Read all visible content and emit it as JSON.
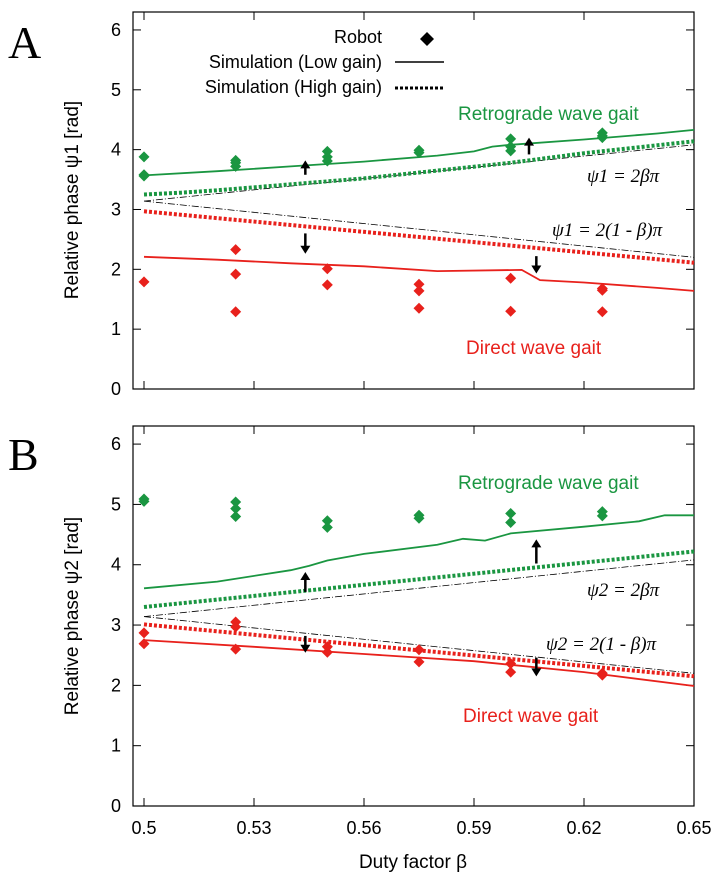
{
  "figure": {
    "xlabel": "Duty factor β",
    "xlim": [
      0.497,
      0.65
    ],
    "xticks": [
      0.5,
      0.53,
      0.56,
      0.59,
      0.62,
      0.65
    ],
    "xtick_labels": [
      "0.5",
      "0.53",
      "0.56",
      "0.59",
      "0.62",
      "0.65"
    ],
    "legend": {
      "robot_label": "Robot",
      "low_label": "Simulation (Low gain)",
      "high_label": "Simulation (High gain)",
      "placement": "top-left"
    },
    "colors": {
      "green": "#1a9641",
      "red": "#e8211c",
      "guide": "#000000",
      "arrow": "#000000"
    }
  },
  "chart_data": [
    {
      "type": "scatter",
      "panel": "A",
      "ylabel": "Relative phase ψ1 [rad]",
      "ylim": [
        0,
        6.3
      ],
      "yticks": [
        0,
        1,
        2,
        3,
        4,
        5,
        6
      ],
      "ytick_labels": [
        "0",
        "1",
        "2",
        "3",
        "4",
        "5",
        "6"
      ],
      "grid": false,
      "retro_label": "Retrograde wave gait",
      "direct_label": "Direct wave gait",
      "retro_formula": "ψ1 = 2βπ",
      "direct_formula": "ψ1 = 2(1 - β)π",
      "series": [
        {
          "name": "Robot",
          "group": "retrograde",
          "points": [
            [
              0.5,
              3.88
            ],
            [
              0.5,
              3.58
            ],
            [
              0.5,
              3.56
            ],
            [
              0.525,
              3.82
            ],
            [
              0.525,
              3.78
            ],
            [
              0.525,
              3.72
            ],
            [
              0.55,
              3.97
            ],
            [
              0.55,
              3.88
            ],
            [
              0.55,
              3.81
            ],
            [
              0.575,
              3.99
            ],
            [
              0.575,
              3.95
            ],
            [
              0.6,
              4.18
            ],
            [
              0.6,
              4.05
            ],
            [
              0.6,
              3.98
            ],
            [
              0.625,
              4.28
            ],
            [
              0.625,
              4.23
            ],
            [
              0.625,
              4.2
            ]
          ]
        },
        {
          "name": "Robot",
          "group": "direct",
          "points": [
            [
              0.5,
              1.79
            ],
            [
              0.525,
              2.33
            ],
            [
              0.525,
              1.92
            ],
            [
              0.525,
              1.29
            ],
            [
              0.55,
              2.01
            ],
            [
              0.55,
              1.74
            ],
            [
              0.575,
              1.75
            ],
            [
              0.575,
              1.64
            ],
            [
              0.575,
              1.35
            ],
            [
              0.6,
              1.85
            ],
            [
              0.6,
              1.3
            ],
            [
              0.625,
              1.68
            ],
            [
              0.625,
              1.65
            ],
            [
              0.625,
              1.29
            ]
          ]
        },
        {
          "name": "Simulation (Low gain)",
          "group": "retrograde",
          "points": [
            [
              0.5,
              3.57
            ],
            [
              0.52,
              3.64
            ],
            [
              0.54,
              3.72
            ],
            [
              0.56,
              3.8
            ],
            [
              0.58,
              3.9
            ],
            [
              0.59,
              3.97
            ],
            [
              0.595,
              4.05
            ],
            [
              0.6,
              4.08
            ],
            [
              0.62,
              4.17
            ],
            [
              0.64,
              4.27
            ],
            [
              0.65,
              4.33
            ]
          ]
        },
        {
          "name": "Simulation (Low gain)",
          "group": "direct",
          "points": [
            [
              0.5,
              2.21
            ],
            [
              0.52,
              2.16
            ],
            [
              0.54,
              2.1
            ],
            [
              0.56,
              2.05
            ],
            [
              0.58,
              1.97
            ],
            [
              0.603,
              1.99
            ],
            [
              0.608,
              1.82
            ],
            [
              0.62,
              1.78
            ],
            [
              0.64,
              1.69
            ],
            [
              0.65,
              1.64
            ]
          ]
        },
        {
          "name": "Simulation (High gain)",
          "group": "retrograde",
          "points": [
            [
              0.5,
              3.25
            ],
            [
              0.51,
              3.28
            ],
            [
              0.52,
              3.32
            ],
            [
              0.56,
              3.52
            ],
            [
              0.6,
              3.78
            ],
            [
              0.62,
              3.94
            ],
            [
              0.65,
              4.14
            ]
          ]
        },
        {
          "name": "Simulation (High gain)",
          "group": "direct",
          "points": [
            [
              0.5,
              2.97
            ],
            [
              0.65,
              2.11
            ]
          ]
        },
        {
          "name": "",
          "group": "guide-retro",
          "points": [
            [
              0.5,
              3.14
            ],
            [
              0.65,
              4.08
            ]
          ]
        },
        {
          "name": "",
          "group": "guide-direct",
          "points": [
            [
              0.5,
              3.14
            ],
            [
              0.65,
              2.2
            ]
          ]
        }
      ],
      "arrows": [
        {
          "x": 0.544,
          "from": 3.58,
          "to": 3.82
        },
        {
          "x": 0.605,
          "from": 3.92,
          "to": 4.2
        },
        {
          "x": 0.544,
          "from": 2.6,
          "to": 2.26
        },
        {
          "x": 0.607,
          "from": 2.22,
          "to": 1.93
        }
      ]
    },
    {
      "type": "scatter",
      "panel": "B",
      "ylabel": "Relative phase ψ2 [rad]",
      "ylim": [
        0,
        6.3
      ],
      "yticks": [
        0,
        1,
        2,
        3,
        4,
        5,
        6
      ],
      "ytick_labels": [
        "0",
        "1",
        "2",
        "3",
        "4",
        "5",
        "6"
      ],
      "grid": false,
      "retro_label": "Retrograde wave gait",
      "direct_label": "Direct wave gait",
      "retro_formula": "ψ2 = 2βπ",
      "direct_formula": "ψ2 = 2(1 - β)π",
      "series": [
        {
          "name": "Robot",
          "group": "retrograde",
          "points": [
            [
              0.5,
              5.09
            ],
            [
              0.5,
              5.05
            ],
            [
              0.525,
              5.04
            ],
            [
              0.525,
              4.93
            ],
            [
              0.525,
              4.8
            ],
            [
              0.55,
              4.73
            ],
            [
              0.55,
              4.62
            ],
            [
              0.575,
              4.82
            ],
            [
              0.575,
              4.77
            ],
            [
              0.6,
              4.85
            ],
            [
              0.6,
              4.7
            ],
            [
              0.625,
              4.88
            ],
            [
              0.625,
              4.81
            ]
          ]
        },
        {
          "name": "Robot",
          "group": "direct",
          "points": [
            [
              0.5,
              2.87
            ],
            [
              0.5,
              2.69
            ],
            [
              0.525,
              3.05
            ],
            [
              0.525,
              2.97
            ],
            [
              0.525,
              2.6
            ],
            [
              0.55,
              2.64
            ],
            [
              0.55,
              2.55
            ],
            [
              0.575,
              2.59
            ],
            [
              0.575,
              2.39
            ],
            [
              0.6,
              2.36
            ],
            [
              0.6,
              2.22
            ],
            [
              0.625,
              2.2
            ],
            [
              0.625,
              2.17
            ]
          ]
        },
        {
          "name": "Simulation (Low gain)",
          "group": "retrograde",
          "points": [
            [
              0.5,
              3.61
            ],
            [
              0.52,
              3.72
            ],
            [
              0.54,
              3.91
            ],
            [
              0.545,
              3.98
            ],
            [
              0.55,
              4.07
            ],
            [
              0.56,
              4.18
            ],
            [
              0.58,
              4.33
            ],
            [
              0.587,
              4.43
            ],
            [
              0.593,
              4.4
            ],
            [
              0.6,
              4.52
            ],
            [
              0.62,
              4.63
            ],
            [
              0.635,
              4.72
            ],
            [
              0.642,
              4.82
            ],
            [
              0.65,
              4.82
            ]
          ]
        },
        {
          "name": "Simulation (Low gain)",
          "group": "direct",
          "points": [
            [
              0.5,
              2.75
            ],
            [
              0.53,
              2.64
            ],
            [
              0.56,
              2.52
            ],
            [
              0.59,
              2.4
            ],
            [
              0.62,
              2.22
            ],
            [
              0.65,
              1.99
            ]
          ]
        },
        {
          "name": "Simulation (High gain)",
          "group": "retrograde",
          "points": [
            [
              0.5,
              3.3
            ],
            [
              0.65,
              4.22
            ]
          ]
        },
        {
          "name": "Simulation (High gain)",
          "group": "direct",
          "points": [
            [
              0.5,
              3.01
            ],
            [
              0.65,
              2.15
            ]
          ]
        },
        {
          "name": "",
          "group": "guide-retro",
          "points": [
            [
              0.5,
              3.14
            ],
            [
              0.65,
              4.08
            ]
          ]
        },
        {
          "name": "",
          "group": "guide-direct",
          "points": [
            [
              0.5,
              3.14
            ],
            [
              0.65,
              2.2
            ]
          ]
        }
      ],
      "arrows": [
        {
          "x": 0.544,
          "from": 3.55,
          "to": 3.88
        },
        {
          "x": 0.607,
          "from": 4.02,
          "to": 4.42
        },
        {
          "x": 0.544,
          "from": 2.82,
          "to": 2.54
        },
        {
          "x": 0.607,
          "from": 2.46,
          "to": 2.15
        }
      ]
    }
  ]
}
